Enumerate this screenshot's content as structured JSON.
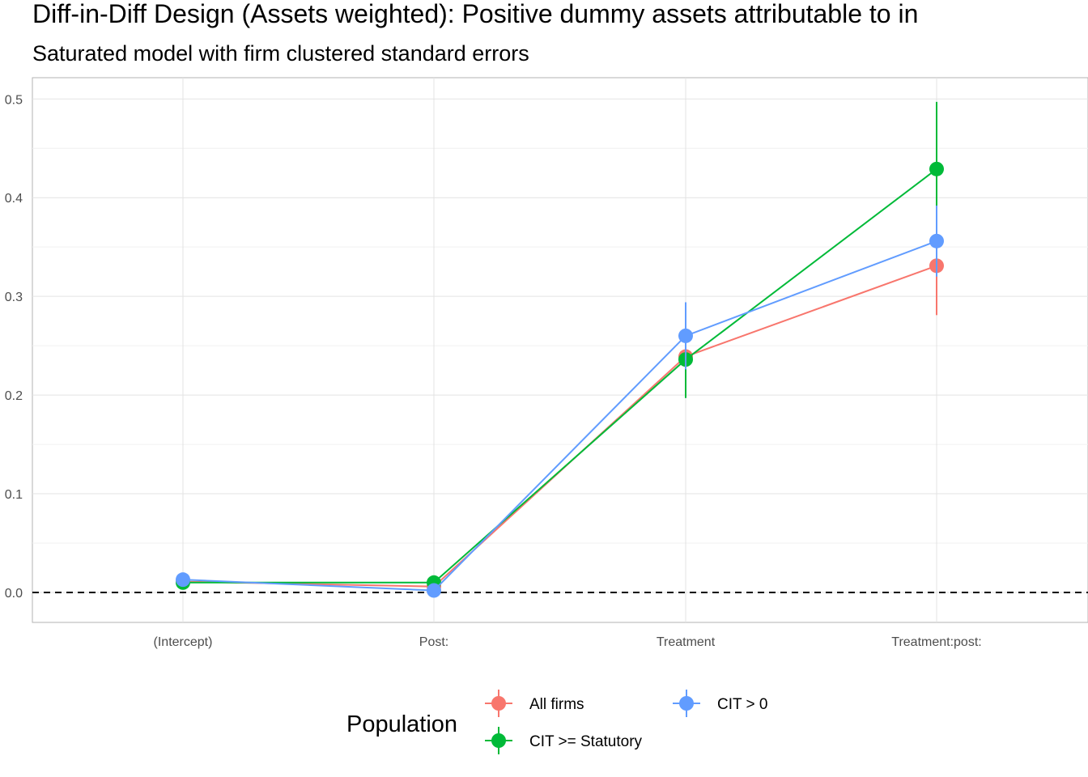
{
  "chart_data": {
    "type": "scatter",
    "title": "Diff-in-Diff Design (Assets weighted): Positive dummy assets attributable to in",
    "subtitle": "Saturated model with firm clustered standard errors",
    "xlabel": "",
    "ylabel": "",
    "categories": [
      "(Intercept)",
      "Post:",
      "Treatment",
      "Treatment:post:"
    ],
    "ylim": [
      -0.03,
      0.52
    ],
    "yticks": [
      0.0,
      0.1,
      0.2,
      0.3,
      0.4,
      0.5
    ],
    "ytick_labels": [
      "0.0",
      "0.1",
      "0.2",
      "0.3",
      "0.4",
      "0.5"
    ],
    "reference_line": 0.0,
    "grid": true,
    "legend_title": "Population",
    "legend_position": "bottom",
    "series": [
      {
        "name": "All firms",
        "color": "#F8766D",
        "values": [
          0.011,
          0.006,
          0.239,
          0.331
        ],
        "ci_low": [
          0.009,
          0.003,
          0.226,
          0.281
        ],
        "ci_high": [
          0.013,
          0.009,
          0.252,
          0.381
        ]
      },
      {
        "name": "CIT >= Statutory",
        "color": "#00BA38",
        "values": [
          0.01,
          0.01,
          0.236,
          0.429
        ],
        "ci_low": [
          0.008,
          0.007,
          0.197,
          0.361
        ],
        "ci_high": [
          0.012,
          0.013,
          0.275,
          0.497
        ]
      },
      {
        "name": "CIT > 0",
        "color": "#619CFF",
        "values": [
          0.013,
          0.002,
          0.26,
          0.356
        ],
        "ci_low": [
          0.011,
          0.0,
          0.226,
          0.32
        ],
        "ci_high": [
          0.015,
          0.004,
          0.294,
          0.392
        ]
      }
    ]
  }
}
